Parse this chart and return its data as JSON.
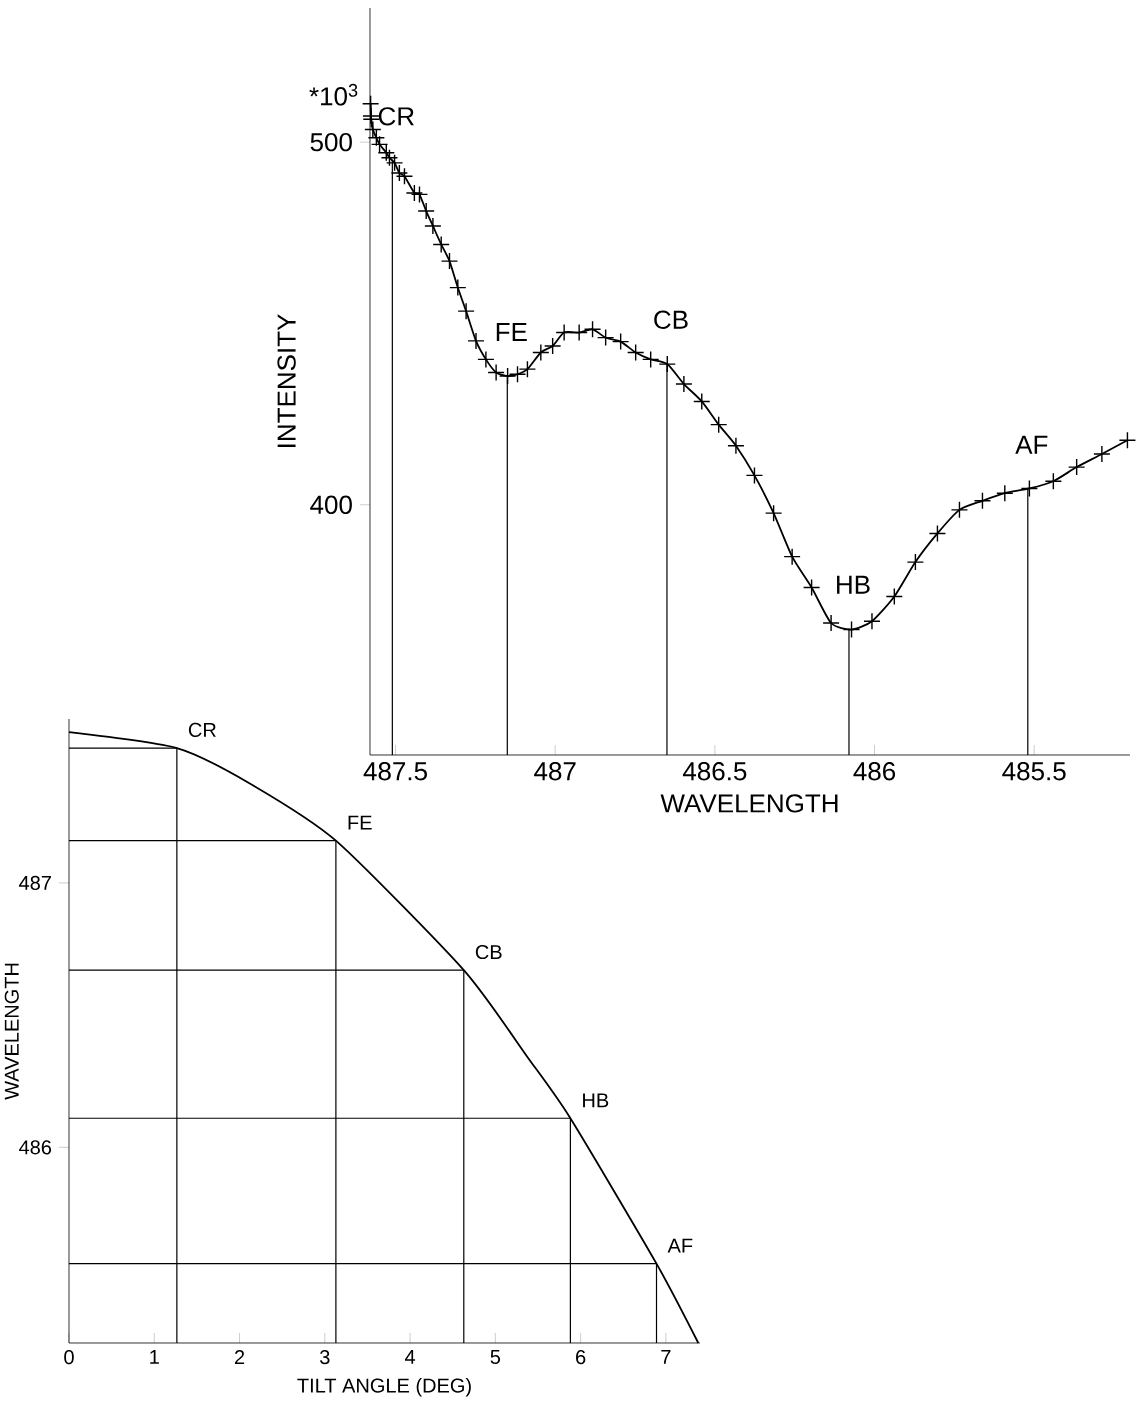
{
  "chart_data": [
    {
      "type": "line",
      "xlabel": "WAVELENGTH",
      "ylabel": "INTENSITY",
      "color": "#000000",
      "marker": "cross",
      "x": [
        487.578,
        487.577,
        487.576,
        487.571,
        487.56,
        487.55,
        487.529,
        487.519,
        487.503,
        487.488,
        487.472,
        487.441,
        487.425,
        487.404,
        487.383,
        487.357,
        487.331,
        487.305,
        487.279,
        487.248,
        487.217,
        487.185,
        487.149,
        487.118,
        487.087,
        487.045,
        487.008,
        486.972,
        486.925,
        486.883,
        486.842,
        486.795,
        486.748,
        486.701,
        486.649,
        486.597,
        486.541,
        486.488,
        486.434,
        486.376,
        486.316,
        486.258,
        486.197,
        486.136,
        486.072,
        486.008,
        485.938,
        485.872,
        485.803,
        485.734,
        485.662,
        485.592,
        485.515,
        485.44,
        485.367,
        485.288,
        485.208
      ],
      "values": [
        510.6,
        507.2,
        506.3,
        503.5,
        501.2,
        499.4,
        497.1,
        495.7,
        494.3,
        491.5,
        490.6,
        486.0,
        485.6,
        481.0,
        476.9,
        471.8,
        467.2,
        459.9,
        453.4,
        445.2,
        440.1,
        436.5,
        435.5,
        436.0,
        437.4,
        442.0,
        443.8,
        447.5,
        447.5,
        448.4,
        446.1,
        445.0,
        442.0,
        440.1,
        438.8,
        433.3,
        428.5,
        422.1,
        416.3,
        408.1,
        397.7,
        385.7,
        377.2,
        367.4,
        365.6,
        367.9,
        374.7,
        384.2,
        392.1,
        398.6,
        401.1,
        403.2,
        404.5,
        406.5,
        410.4,
        414.0,
        417.8
      ],
      "xlim": [
        487.58,
        485.2
      ],
      "ylim": [
        331,
        537
      ],
      "xticks": [
        487.5,
        487,
        486.5,
        486,
        485.5
      ],
      "yticks": [
        500,
        400
      ],
      "annotations": [
        "*10$^{3}$"
      ],
      "ref_lines": [
        {
          "axis": "x",
          "value": 487.51,
          "label": "CR"
        },
        {
          "axis": "x",
          "value": 487.15,
          "label": "FE"
        },
        {
          "axis": "x",
          "value": 486.65,
          "label": "CB"
        },
        {
          "axis": "x",
          "value": 486.08,
          "label": "HB"
        },
        {
          "axis": "x",
          "value": 485.52,
          "label": "AF"
        }
      ]
    },
    {
      "type": "line",
      "xlabel": "TILT ANGLE  (DEG)",
      "ylabel": "WAVELENGTH",
      "color": "#000000",
      "x": [
        0,
        1.265,
        2.1,
        3.13,
        4.63,
        5.38,
        5.88,
        6.89,
        7.38
      ],
      "values": [
        487.57,
        487.51,
        487.38,
        487.16,
        486.67,
        486.34,
        486.11,
        485.56,
        485.26
      ],
      "xlim": [
        0,
        7.4
      ],
      "ylim": [
        485.26,
        487.62
      ],
      "xticks": [
        0,
        1,
        2,
        3,
        4,
        5,
        6,
        7
      ],
      "yticks": [
        487,
        486
      ],
      "ref_lines": [
        {
          "axis": "y",
          "value": 487.51,
          "label": "CR"
        },
        {
          "axis": "y",
          "value": 487.16,
          "label": "FE"
        },
        {
          "axis": "y",
          "value": 486.67,
          "label": "CB"
        },
        {
          "axis": "y",
          "value": 486.11,
          "label": "HB"
        },
        {
          "axis": "y",
          "value": 485.56,
          "label": "AF"
        },
        {
          "axis": "x",
          "value": 1.265
        },
        {
          "axis": "x",
          "value": 3.13
        },
        {
          "axis": "x",
          "value": 4.63
        },
        {
          "axis": "x",
          "value": 5.88
        },
        {
          "axis": "x",
          "value": 6.89
        }
      ]
    }
  ]
}
